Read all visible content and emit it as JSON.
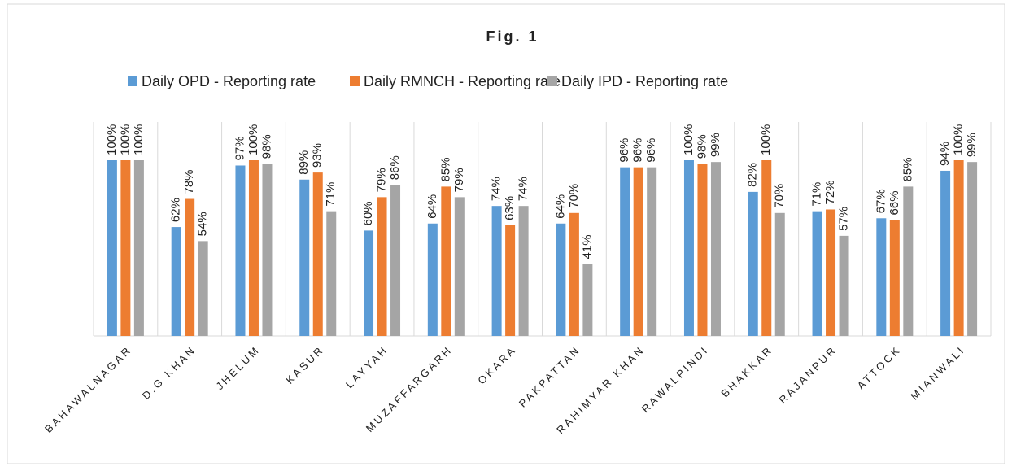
{
  "chart_data": {
    "type": "bar",
    "title": "Fig. 1",
    "categories": [
      "BAHAWALNAGAR",
      "D.G KHAN",
      "JHELUM",
      "KASUR",
      "LAYYAH",
      "MUZAFFARGARH",
      "OKARA",
      "PAKPATTAN",
      "RAHIMYAR KHAN",
      "RAWALPINDI",
      "BHAKKAR",
      "RAJANPUR",
      "ATTOCK",
      "MIANWALI"
    ],
    "series": [
      {
        "name": "Daily OPD - Reporting rate",
        "color": "#5b9bd5",
        "values": [
          100,
          62,
          97,
          89,
          60,
          64,
          74,
          64,
          96,
          100,
          82,
          71,
          67,
          94
        ],
        "value_labels": [
          "100%",
          "62%",
          "97%",
          "89%",
          "60%",
          "64%",
          "74%",
          "64%",
          "96%",
          "100%",
          "82%",
          "71%",
          "67%",
          "94%"
        ]
      },
      {
        "name": "Daily RMNCH - Reporting rate",
        "color": "#ed7d31",
        "values": [
          100,
          78,
          100,
          93,
          79,
          85,
          63,
          70,
          96,
          98,
          100,
          72,
          66,
          100
        ],
        "value_labels": [
          "100%",
          "78%",
          "100%",
          "93%",
          "79%",
          "85%",
          "63%",
          "70%",
          "96%",
          "98%",
          "100%",
          "72%",
          "66%",
          "100%"
        ]
      },
      {
        "name": "Daily IPD - Reporting rate",
        "color": "#a5a5a5",
        "values": [
          100,
          54,
          98,
          71,
          86,
          79,
          74,
          41,
          96,
          99,
          70,
          57,
          85,
          99
        ],
        "value_labels": [
          "100%",
          "54%",
          "98%",
          "71%",
          "86%",
          "79%",
          "74%",
          "41%",
          "96%",
          "99%",
          "70%",
          "57%",
          "85%",
          "99%"
        ]
      }
    ],
    "ylim": [
      0,
      100
    ],
    "legend": "top"
  }
}
